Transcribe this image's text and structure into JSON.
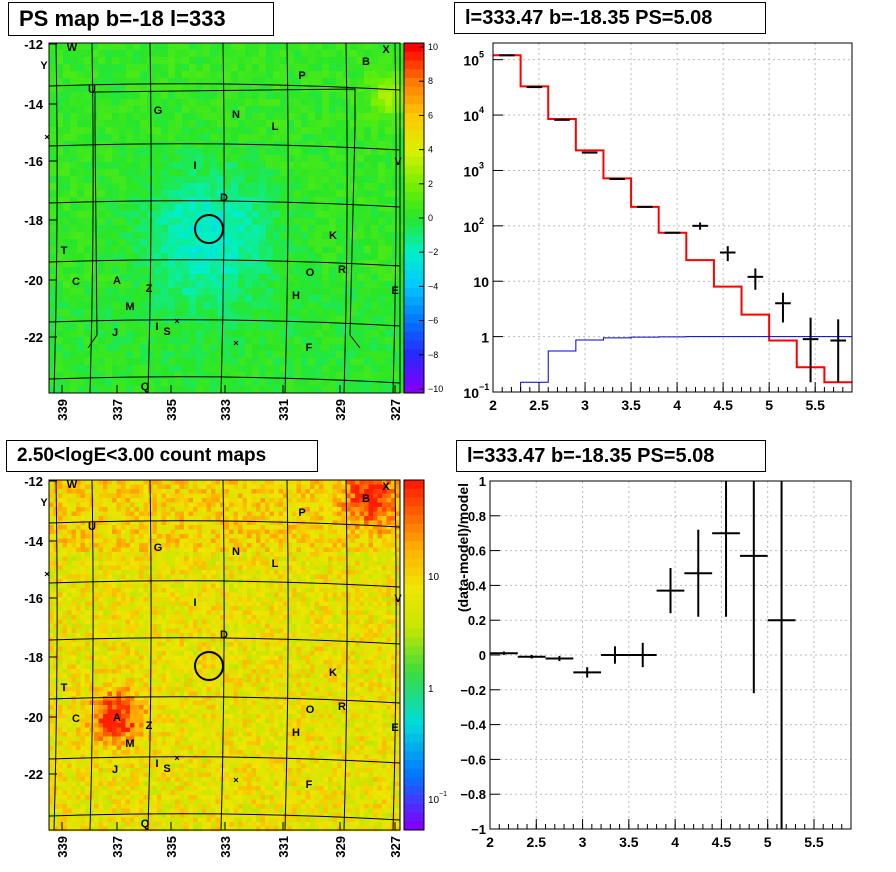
{
  "panels": {
    "map1": {
      "title": "PS map b=-18 l=333",
      "palette": "ps"
    },
    "map2": {
      "title": "2.50<logE<3.00 count maps",
      "palette": "counts"
    },
    "spec": {
      "title": "l=333.47 b=-18.35 PS=5.08"
    },
    "resid": {
      "title": "l=333.47 b=-18.35 PS=5.08"
    }
  },
  "map_axes": {
    "x_ticks": [
      "339",
      "337",
      "335",
      "333",
      "331",
      "329",
      "327"
    ],
    "y_ticks": [
      "-12",
      "-14",
      "-16",
      "-18",
      "-20",
      "-22"
    ]
  },
  "colorbar1": {
    "ticks": [
      "10",
      "8",
      "6",
      "4",
      "2",
      "0",
      "−2",
      "−4",
      "−6",
      "−8",
      "−10"
    ]
  },
  "colorbar2": {
    "ticks": [
      "10",
      "1",
      "10",
      "−1"
    ]
  },
  "source_labels": [
    "W",
    "X",
    "Y",
    "P",
    "B",
    "U",
    "G",
    "N",
    "L",
    "I",
    "V",
    "D",
    "T",
    "K",
    "R",
    "C",
    "A",
    "Z",
    "O",
    "H",
    "E",
    "M",
    "I",
    "S",
    "J",
    "F",
    "Q"
  ],
  "chart_data": [
    {
      "type": "line",
      "name": "spectrum",
      "title": "l=333.47 b=-18.35 PS=5.08",
      "xlabel": "",
      "ylabel": "",
      "xlim": [
        2,
        5.9
      ],
      "ylim": [
        0.1,
        200000
      ],
      "log_y": true,
      "grid": true,
      "x_ticks": [
        "2",
        "2.5",
        "3",
        "3.5",
        "4",
        "4.5",
        "5",
        "5.5"
      ],
      "y_ticks": [
        {
          "base": "10",
          "exp": "5"
        },
        {
          "base": "10",
          "exp": "4"
        },
        {
          "base": "10",
          "exp": "3"
        },
        {
          "base": "10",
          "exp": "2"
        },
        {
          "base": "10",
          "exp": ""
        },
        {
          "base": "1",
          "exp": ""
        },
        {
          "base": "10",
          "exp": "−1"
        }
      ],
      "bin_edges": [
        2.0,
        2.3,
        2.6,
        2.9,
        3.2,
        3.5,
        3.8,
        4.1,
        4.4,
        4.7,
        5.0,
        5.3,
        5.6,
        5.9
      ],
      "series": [
        {
          "role": "model",
          "color": "#ff0000",
          "values": [
            120000,
            33000,
            8500,
            2300,
            720,
            220,
            75,
            24,
            8,
            2.5,
            0.85,
            0.28,
            0.15
          ]
        },
        {
          "role": "background",
          "color": "#0000cc",
          "values": [
            0.1,
            0.15,
            0.55,
            0.87,
            0.95,
            0.98,
            0.99,
            1.0,
            1.0,
            1.0,
            1.0,
            1.0,
            1.0
          ]
        },
        {
          "role": "data",
          "color": "#000000",
          "values": [
            120000,
            32000,
            8200,
            2100,
            700,
            220,
            75,
            100,
            33,
            12,
            4,
            0.9,
            0.85
          ],
          "err_lo": [
            0,
            0,
            0,
            0,
            0,
            0,
            0,
            15,
            10,
            5,
            2.2,
            0.75,
            0.7
          ],
          "err_hi": [
            0,
            0,
            0,
            0,
            0,
            0,
            0,
            15,
            10,
            5,
            2.2,
            1.3,
            1.2
          ]
        }
      ]
    },
    {
      "type": "scatter",
      "name": "residuals",
      "title": "l=333.47 b=-18.35 PS=5.08",
      "xlabel": "",
      "ylabel": "(data-model)/model",
      "xlim": [
        2,
        5.9
      ],
      "ylim": [
        -1,
        1
      ],
      "grid": true,
      "x_ticks": [
        "2",
        "2.5",
        "3",
        "3.5",
        "4",
        "4.5",
        "5",
        "5.5"
      ],
      "y_ticks": [
        "1",
        "0.8",
        "0.6",
        "0.4",
        "0.2",
        "0",
        "−0.2",
        "−0.4",
        "−0.6",
        "−0.8",
        "−1"
      ],
      "points": [
        {
          "x": 2.15,
          "y": 0.01,
          "xerr": 0.15,
          "yerr": 0.01
        },
        {
          "x": 2.45,
          "y": -0.01,
          "xerr": 0.15,
          "yerr": 0.01
        },
        {
          "x": 2.75,
          "y": -0.02,
          "xerr": 0.15,
          "yerr": 0.015
        },
        {
          "x": 3.05,
          "y": -0.1,
          "xerr": 0.15,
          "yerr": 0.03
        },
        {
          "x": 3.35,
          "y": 0.0,
          "xerr": 0.15,
          "yerr": 0.05
        },
        {
          "x": 3.65,
          "y": 0.0,
          "xerr": 0.15,
          "yerr": 0.07
        },
        {
          "x": 3.95,
          "y": 0.37,
          "xerr": 0.15,
          "yerr": 0.13
        },
        {
          "x": 4.25,
          "y": 0.47,
          "xerr": 0.15,
          "yerr": 0.25
        },
        {
          "x": 4.55,
          "y": 0.7,
          "xerr": 0.15,
          "yerr": 0.48
        },
        {
          "x": 4.85,
          "y": 0.57,
          "xerr": 0.15,
          "yerr": 0.79
        },
        {
          "x": 5.15,
          "y": 0.2,
          "xerr": 0.15,
          "yerr": 1.5
        }
      ]
    }
  ]
}
